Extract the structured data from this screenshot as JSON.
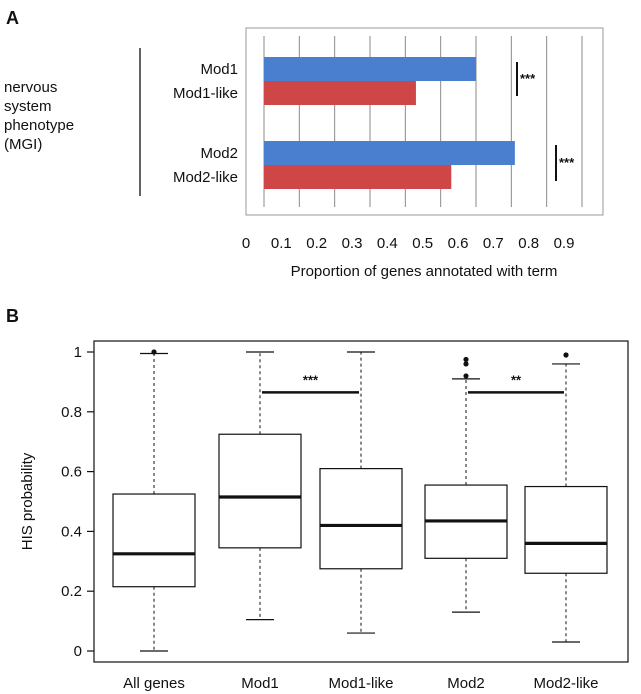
{
  "panels": {
    "a_letter": "A",
    "b_letter": "B"
  },
  "chart_data": [
    {
      "type": "bar",
      "orientation": "horizontal",
      "side_label_lines": [
        "nervous",
        "system",
        "phenotype",
        "(MGI)"
      ],
      "categories": [
        "Mod1",
        "Mod1-like",
        "Mod2",
        "Mod2-like"
      ],
      "values": [
        0.6,
        0.43,
        0.71,
        0.53
      ],
      "colors": [
        "#4a7fd0",
        "#cf4646",
        "#4a7fd0",
        "#cf4646"
      ],
      "xlabel": "Proportion of genes annotated with term",
      "xlim": [
        0,
        0.9
      ],
      "xticks": [
        "0",
        "0.1",
        "0.2",
        "0.3",
        "0.4",
        "0.5",
        "0.6",
        "0.7",
        "0.8",
        "0.9"
      ],
      "grid": true,
      "significance": [
        {
          "between": [
            "Mod1",
            "Mod1-like"
          ],
          "label": "***"
        },
        {
          "between": [
            "Mod2",
            "Mod2-like"
          ],
          "label": "***"
        }
      ]
    },
    {
      "type": "boxplot",
      "ylabel": "HIS probability",
      "ylim": [
        0,
        1
      ],
      "yticks": [
        "0",
        "0.2",
        "0.4",
        "0.6",
        "0.8",
        "1"
      ],
      "categories": [
        "All genes",
        "Mod1",
        "Mod1-like",
        "Mod2",
        "Mod2-like"
      ],
      "boxes": [
        {
          "min": 0.0,
          "q1": 0.215,
          "median": 0.325,
          "q3": 0.525,
          "max": 0.995,
          "outliers": [
            1.0
          ]
        },
        {
          "min": 0.105,
          "q1": 0.345,
          "median": 0.515,
          "q3": 0.725,
          "max": 1.0,
          "outliers": []
        },
        {
          "min": 0.06,
          "q1": 0.275,
          "median": 0.42,
          "q3": 0.61,
          "max": 1.0,
          "outliers": []
        },
        {
          "min": 0.13,
          "q1": 0.31,
          "median": 0.435,
          "q3": 0.555,
          "max": 0.91,
          "outliers": [
            0.92,
            0.96,
            0.975
          ]
        },
        {
          "min": 0.03,
          "q1": 0.26,
          "median": 0.36,
          "q3": 0.55,
          "max": 0.96,
          "outliers": [
            0.99
          ]
        }
      ],
      "significance": [
        {
          "between": [
            "Mod1",
            "Mod1-like"
          ],
          "y": 0.865,
          "label": "***"
        },
        {
          "between": [
            "Mod2",
            "Mod2-like"
          ],
          "y": 0.865,
          "label": "**"
        }
      ]
    }
  ]
}
